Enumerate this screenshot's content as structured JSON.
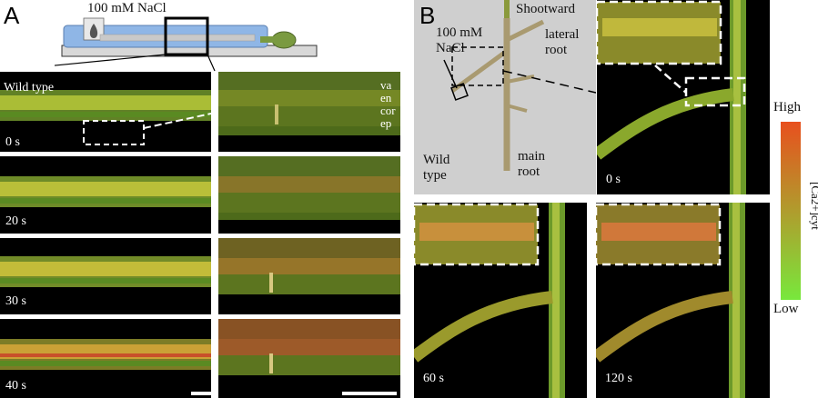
{
  "panels": {
    "a_letter": "A",
    "b_letter": "B"
  },
  "panel_a": {
    "treatment_label": "100 mM NaCl",
    "genotype_label": "Wild type",
    "times": [
      "0 s",
      "20 s",
      "30 s",
      "40 s"
    ],
    "tissue_labels": [
      "va",
      "en",
      "cor",
      "ep"
    ]
  },
  "panel_b": {
    "treatment_label_line1": "100 mM",
    "treatment_label_line2": "NaCl",
    "shootward_label": "Shootward",
    "lateral_root_line1": "lateral",
    "lateral_root_line2": "root",
    "main_root_line1": "main",
    "main_root_line2": "root",
    "genotype_line1": "Wild",
    "genotype_line2": "type",
    "times": [
      "0 s",
      "60 s",
      "120 s"
    ]
  },
  "colorbar": {
    "high_label": "High",
    "low_label": "Low",
    "quantity_label": "[Ca2+]cyt",
    "color_high": "#e8501e",
    "color_low": "#78e83c"
  }
}
